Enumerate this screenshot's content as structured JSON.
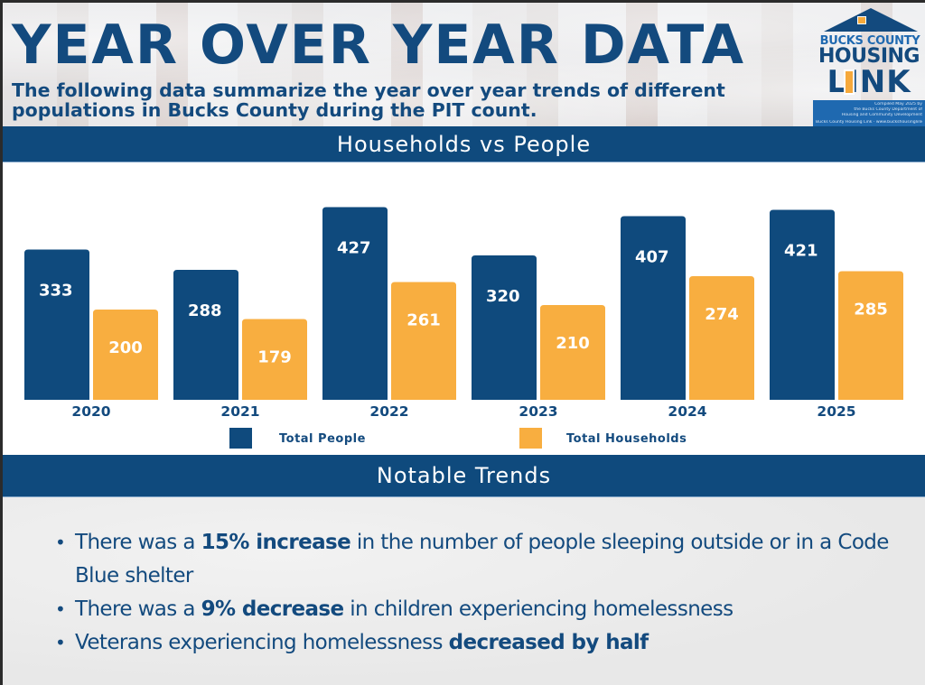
{
  "header": {
    "title": "YEAR OVER YEAR DATA",
    "subtitle_line1": "The following data summarize the year over year trends of different",
    "subtitle_line2": "populations in Bucks County during the PIT count."
  },
  "logo": {
    "line1": "BUCKS COUNTY",
    "line2": "HOUSING",
    "line3": "LINK",
    "compiled_line1": "Compiled May 2025 by",
    "compiled_line2": "the Bucks County Department of",
    "compiled_line3": "Housing and Community Development",
    "footer": "Bucks County Housing Link · www.buckshousinglink.org"
  },
  "sections": {
    "households_title": "Households vs People",
    "trends_title": "Notable Trends"
  },
  "colors": {
    "navy": "#0f4a7d",
    "orange": "#f8ae40",
    "text_blue": "#134a7e"
  },
  "chart_data": {
    "type": "bar",
    "title": "Households vs People",
    "xlabel": "",
    "ylabel": "",
    "categories": [
      "2020",
      "2021",
      "2022",
      "2023",
      "2024",
      "2025"
    ],
    "series": [
      {
        "name": "Total People",
        "color": "#0f4a7d",
        "values": [
          333,
          288,
          427,
          320,
          407,
          421
        ]
      },
      {
        "name": "Total Households",
        "color": "#f8ae40",
        "values": [
          200,
          179,
          261,
          210,
          274,
          285
        ]
      }
    ],
    "ylim": [
      0,
      440
    ],
    "grid": false,
    "legend": "bottom",
    "data_labels": true
  },
  "trends": [
    {
      "pre": "There was a ",
      "bold": "15% increase",
      "post": " in the number of people sleeping outside or in a Code Blue shelter"
    },
    {
      "pre": "There was a ",
      "bold": "9% decrease",
      "post": " in children experiencing homelessness"
    },
    {
      "pre": "Veterans experiencing homelessness ",
      "bold": "decreased by half",
      "post": ""
    }
  ]
}
